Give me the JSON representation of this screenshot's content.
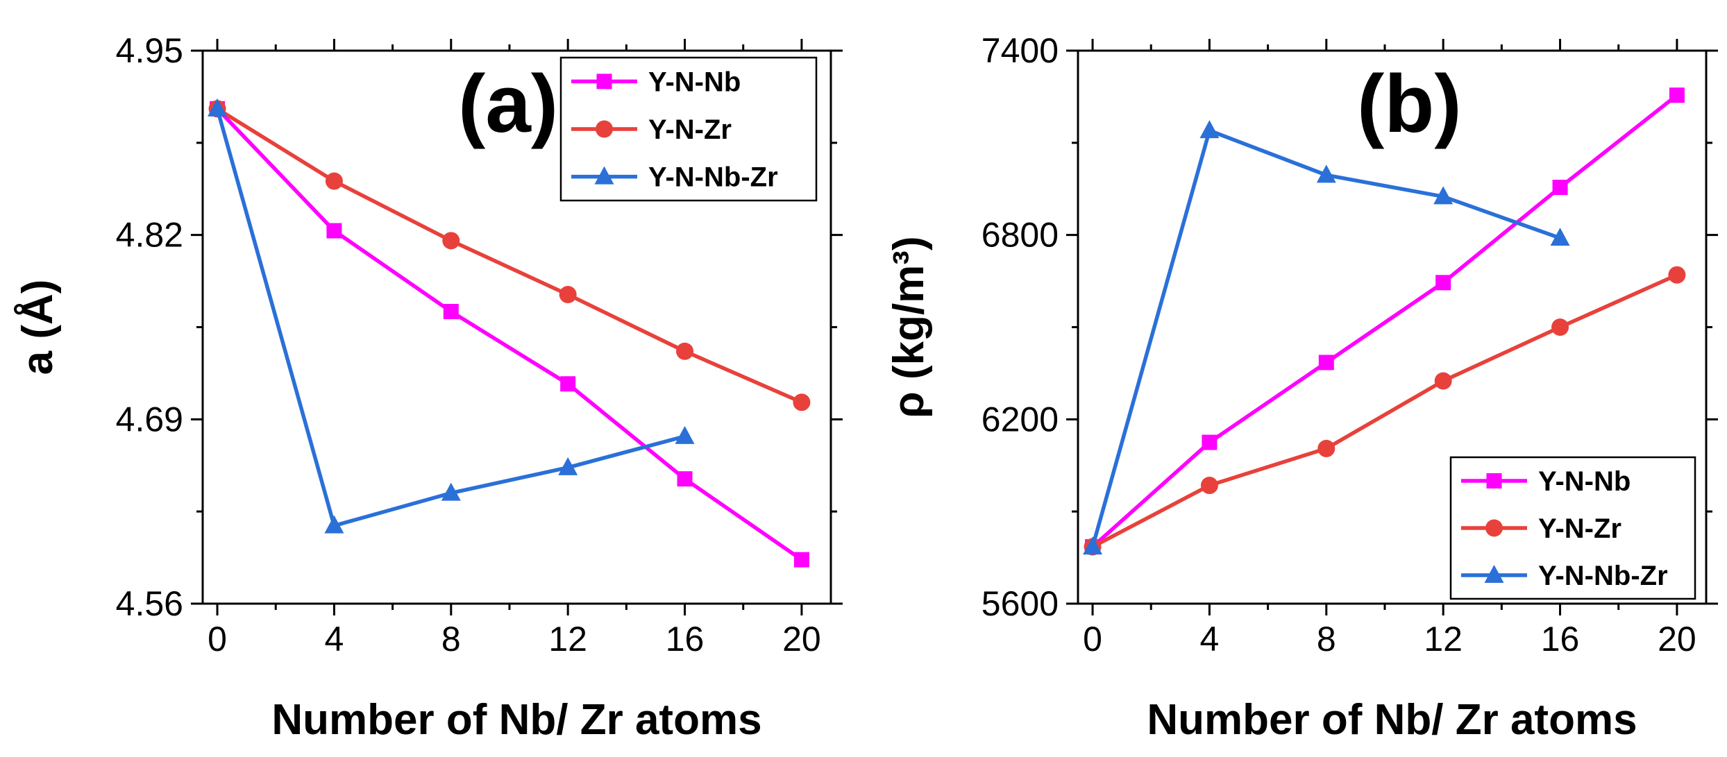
{
  "chart_data": [
    {
      "type": "line",
      "panel_label": "(a)",
      "xlabel": "Number of Nb/ Zr atoms",
      "ylabel": "a (Å)",
      "xlim": [
        -0.5,
        21
      ],
      "ylim": [
        4.56,
        4.95
      ],
      "xticks": [
        "0",
        "4",
        "8",
        "12",
        "16",
        "20"
      ],
      "yticks": [
        "4.56",
        "4.69",
        "4.82",
        "4.95"
      ],
      "legend_position": "top-right",
      "series": [
        {
          "name": "Y-N-Nb",
          "color": "#ff00ff",
          "marker": "square",
          "x": [
            0,
            4,
            8,
            12,
            16,
            20
          ],
          "y": [
            4.909,
            4.823,
            4.766,
            4.715,
            4.648,
            4.591
          ]
        },
        {
          "name": "Y-N-Zr",
          "color": "#e8413b",
          "marker": "circle",
          "x": [
            0,
            4,
            8,
            12,
            16,
            20
          ],
          "y": [
            4.909,
            4.858,
            4.816,
            4.778,
            4.738,
            4.702
          ]
        },
        {
          "name": "Y-N-Nb-Zr",
          "color": "#2a70d8",
          "marker": "triangle",
          "x": [
            0,
            4,
            8,
            12,
            16
          ],
          "y": [
            4.909,
            4.615,
            4.638,
            4.656,
            4.678
          ]
        }
      ]
    },
    {
      "type": "line",
      "panel_label": "(b)",
      "xlabel": "Number of Nb/ Zr atoms",
      "ylabel": "ρ (kg/m³)",
      "xlim": [
        -0.5,
        21
      ],
      "ylim": [
        5600,
        7400
      ],
      "xticks": [
        "0",
        "4",
        "8",
        "12",
        "16",
        "20"
      ],
      "yticks": [
        "5600",
        "6200",
        "6800",
        "7400"
      ],
      "legend_position": "bottom-right",
      "series": [
        {
          "name": "Y-N-Nb",
          "color": "#ff00ff",
          "marker": "square",
          "x": [
            0,
            4,
            8,
            12,
            16,
            20
          ],
          "y": [
            5785,
            6125,
            6385,
            6645,
            6955,
            7255
          ]
        },
        {
          "name": "Y-N-Zr",
          "color": "#e8413b",
          "marker": "circle",
          "x": [
            0,
            4,
            8,
            12,
            16,
            20
          ],
          "y": [
            5785,
            5985,
            6105,
            6325,
            6500,
            6670
          ]
        },
        {
          "name": "Y-N-Nb-Zr",
          "color": "#2a70d8",
          "marker": "triangle",
          "x": [
            0,
            4,
            8,
            12,
            16
          ],
          "y": [
            5785,
            7140,
            6995,
            6925,
            6790
          ]
        }
      ]
    }
  ]
}
